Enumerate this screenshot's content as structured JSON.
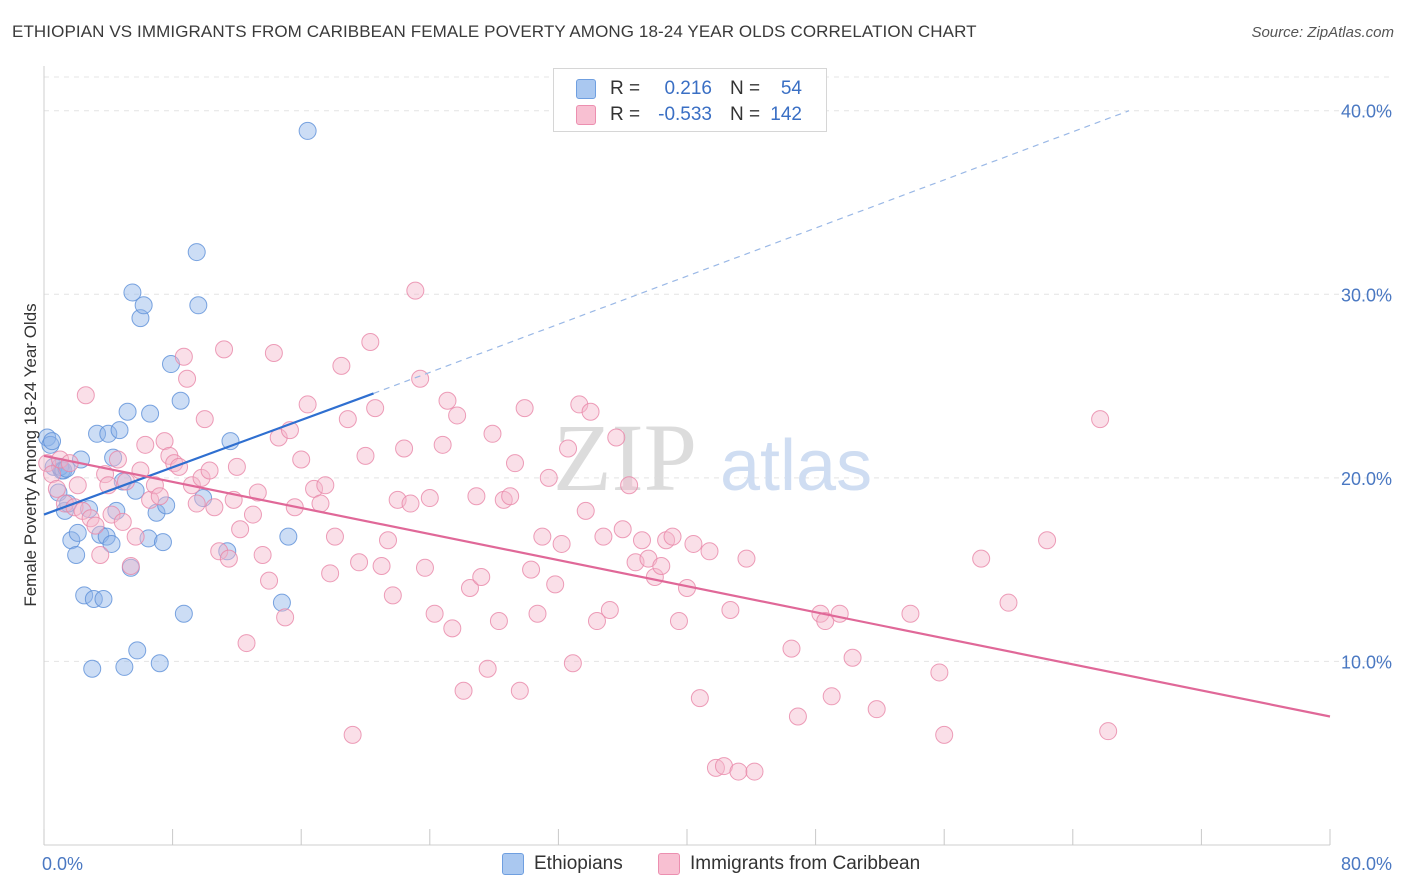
{
  "title": "ETHIOPIAN VS IMMIGRANTS FROM CARIBBEAN FEMALE POVERTY AMONG 18-24 YEAR OLDS CORRELATION CHART",
  "source": "Source: ZipAtlas.com",
  "watermark": {
    "zip": "ZIP",
    "atlas": "atlas"
  },
  "legend_stats": {
    "r_label": "R =",
    "n_label": "N =",
    "rows": [
      {
        "r": "0.216",
        "n": "54",
        "color": "#aac8f0",
        "border": "#6f9fe0"
      },
      {
        "r": "-0.533",
        "n": "142",
        "color": "#f8c0d2",
        "border": "#ec8fb0"
      }
    ]
  },
  "chart_data": {
    "type": "scatter",
    "title": "ETHIOPIAN VS IMMIGRANTS FROM CARIBBEAN FEMALE POVERTY AMONG 18-24 YEAR OLDS CORRELATION CHART",
    "xlabel": "",
    "ylabel": "Female Poverty Among 18-24 Year Olds",
    "xlim": [
      0,
      80
    ],
    "ylim": [
      0,
      42
    ],
    "x_tick_labels": [
      "0.0%",
      "80.0%"
    ],
    "y_ticks": [
      10,
      20,
      30,
      40
    ],
    "y_tick_labels": [
      "10.0%",
      "20.0%",
      "30.0%",
      "40.0%"
    ],
    "grid": true,
    "legend_position": "bottom",
    "series": [
      {
        "name": "Ethiopians",
        "color": "#8fb4e8",
        "stroke": "#5b8fd8",
        "trend_color": "#2f6fd0",
        "trend": {
          "x1": 0,
          "y1": 18.0,
          "x2": 20.5,
          "y2": 24.6,
          "dash_to_x": 67.5,
          "dash_to_y": 40.0
        },
        "points": [
          [
            0.2,
            22.2
          ],
          [
            0.4,
            21.8
          ],
          [
            0.6,
            20.6
          ],
          [
            0.9,
            19.2
          ],
          [
            1.1,
            20.4
          ],
          [
            1.3,
            18.2
          ],
          [
            1.5,
            18.6
          ],
          [
            1.7,
            16.6
          ],
          [
            2.0,
            15.8
          ],
          [
            2.1,
            17.0
          ],
          [
            2.3,
            21.0
          ],
          [
            2.5,
            13.6
          ],
          [
            2.8,
            18.3
          ],
          [
            3.0,
            9.6
          ],
          [
            3.1,
            13.4
          ],
          [
            3.3,
            22.4
          ],
          [
            3.5,
            16.9
          ],
          [
            3.7,
            13.4
          ],
          [
            3.9,
            16.8
          ],
          [
            4.0,
            22.4
          ],
          [
            4.2,
            16.4
          ],
          [
            4.3,
            21.1
          ],
          [
            4.5,
            18.2
          ],
          [
            4.7,
            22.6
          ],
          [
            4.9,
            19.8
          ],
          [
            5.0,
            9.7
          ],
          [
            5.2,
            23.6
          ],
          [
            5.4,
            15.1
          ],
          [
            5.5,
            30.1
          ],
          [
            5.7,
            19.3
          ],
          [
            5.8,
            10.6
          ],
          [
            6.0,
            28.7
          ],
          [
            6.2,
            29.4
          ],
          [
            6.5,
            16.7
          ],
          [
            6.6,
            23.5
          ],
          [
            7.0,
            18.1
          ],
          [
            7.2,
            9.9
          ],
          [
            7.4,
            16.5
          ],
          [
            7.6,
            18.5
          ],
          [
            7.9,
            26.2
          ],
          [
            8.5,
            24.2
          ],
          [
            8.7,
            12.6
          ],
          [
            9.5,
            32.3
          ],
          [
            9.6,
            29.4
          ],
          [
            9.9,
            18.9
          ],
          [
            11.4,
            16.0
          ],
          [
            11.6,
            22.0
          ],
          [
            14.8,
            13.2
          ],
          [
            15.2,
            16.8
          ],
          [
            16.4,
            38.9
          ],
          [
            1.0,
            20.6
          ],
          [
            1.2,
            20.4
          ],
          [
            0.5,
            22.0
          ],
          [
            1.4,
            20.5
          ]
        ]
      },
      {
        "name": "Immigrants from Caribbean",
        "color": "#f5b8cc",
        "stroke": "#e886a8",
        "trend_color": "#e06898",
        "trend": {
          "x1": 0,
          "y1": 21.2,
          "x2": 80,
          "y2": 7.0
        },
        "points": [
          [
            0.2,
            20.8
          ],
          [
            0.5,
            20.2
          ],
          [
            0.8,
            19.4
          ],
          [
            1.0,
            21.0
          ],
          [
            1.3,
            18.6
          ],
          [
            1.6,
            20.8
          ],
          [
            1.9,
            18.4
          ],
          [
            2.1,
            19.6
          ],
          [
            2.4,
            18.2
          ],
          [
            2.6,
            24.5
          ],
          [
            2.9,
            17.8
          ],
          [
            3.2,
            17.4
          ],
          [
            3.5,
            15.8
          ],
          [
            3.8,
            20.2
          ],
          [
            4.0,
            19.6
          ],
          [
            4.2,
            18.0
          ],
          [
            4.6,
            21.0
          ],
          [
            4.9,
            17.6
          ],
          [
            5.1,
            19.8
          ],
          [
            5.4,
            15.2
          ],
          [
            5.7,
            16.8
          ],
          [
            6.0,
            20.4
          ],
          [
            6.3,
            21.8
          ],
          [
            6.6,
            18.8
          ],
          [
            6.9,
            19.6
          ],
          [
            7.2,
            19.0
          ],
          [
            7.5,
            22.0
          ],
          [
            7.8,
            21.2
          ],
          [
            8.1,
            20.8
          ],
          [
            8.4,
            20.6
          ],
          [
            8.7,
            26.6
          ],
          [
            8.9,
            25.4
          ],
          [
            9.2,
            19.6
          ],
          [
            9.5,
            18.6
          ],
          [
            9.8,
            20.0
          ],
          [
            10.0,
            23.2
          ],
          [
            10.3,
            20.4
          ],
          [
            10.6,
            18.4
          ],
          [
            10.9,
            16.0
          ],
          [
            11.2,
            27.0
          ],
          [
            11.5,
            15.6
          ],
          [
            11.8,
            18.8
          ],
          [
            12.0,
            20.6
          ],
          [
            12.2,
            17.2
          ],
          [
            12.6,
            11.0
          ],
          [
            13.0,
            18.0
          ],
          [
            13.3,
            19.2
          ],
          [
            13.6,
            15.8
          ],
          [
            14.0,
            14.4
          ],
          [
            14.3,
            26.8
          ],
          [
            14.6,
            22.2
          ],
          [
            15.0,
            12.4
          ],
          [
            15.3,
            22.6
          ],
          [
            15.6,
            18.4
          ],
          [
            16.0,
            21.0
          ],
          [
            16.4,
            24.0
          ],
          [
            16.8,
            19.4
          ],
          [
            17.2,
            18.6
          ],
          [
            17.5,
            19.6
          ],
          [
            17.8,
            14.8
          ],
          [
            18.1,
            16.8
          ],
          [
            18.5,
            26.1
          ],
          [
            18.9,
            23.2
          ],
          [
            19.2,
            6.0
          ],
          [
            19.6,
            15.4
          ],
          [
            20.0,
            21.2
          ],
          [
            20.3,
            27.4
          ],
          [
            20.6,
            23.8
          ],
          [
            21.0,
            15.2
          ],
          [
            21.4,
            16.6
          ],
          [
            21.7,
            13.6
          ],
          [
            22.0,
            18.8
          ],
          [
            22.4,
            21.6
          ],
          [
            22.8,
            18.6
          ],
          [
            23.1,
            30.2
          ],
          [
            23.4,
            25.4
          ],
          [
            23.7,
            15.1
          ],
          [
            24.0,
            18.9
          ],
          [
            24.3,
            12.6
          ],
          [
            24.8,
            21.8
          ],
          [
            25.1,
            24.2
          ],
          [
            25.4,
            11.8
          ],
          [
            25.7,
            23.4
          ],
          [
            26.1,
            8.4
          ],
          [
            26.5,
            14.0
          ],
          [
            26.9,
            19.0
          ],
          [
            27.2,
            14.6
          ],
          [
            27.6,
            9.6
          ],
          [
            27.9,
            22.4
          ],
          [
            28.3,
            12.2
          ],
          [
            28.6,
            18.8
          ],
          [
            29.0,
            19.0
          ],
          [
            29.3,
            20.8
          ],
          [
            29.6,
            8.4
          ],
          [
            29.9,
            23.8
          ],
          [
            30.3,
            15.0
          ],
          [
            30.7,
            12.6
          ],
          [
            31.0,
            16.8
          ],
          [
            31.4,
            20.0
          ],
          [
            31.8,
            14.2
          ],
          [
            32.2,
            16.4
          ],
          [
            32.6,
            21.6
          ],
          [
            32.9,
            9.9
          ],
          [
            33.3,
            24.0
          ],
          [
            33.7,
            18.2
          ],
          [
            34.0,
            23.6
          ],
          [
            34.4,
            12.2
          ],
          [
            34.8,
            16.8
          ],
          [
            35.2,
            12.8
          ],
          [
            35.6,
            22.2
          ],
          [
            36.0,
            17.2
          ],
          [
            36.4,
            19.6
          ],
          [
            36.8,
            15.4
          ],
          [
            37.2,
            16.6
          ],
          [
            37.6,
            15.6
          ],
          [
            38.0,
            14.6
          ],
          [
            38.4,
            15.2
          ],
          [
            38.7,
            16.6
          ],
          [
            39.1,
            16.8
          ],
          [
            39.5,
            12.2
          ],
          [
            40.0,
            14.0
          ],
          [
            40.4,
            16.4
          ],
          [
            40.8,
            8.0
          ],
          [
            41.4,
            16.0
          ],
          [
            41.8,
            4.2
          ],
          [
            42.3,
            4.3
          ],
          [
            42.7,
            12.8
          ],
          [
            43.2,
            4.0
          ],
          [
            43.7,
            15.6
          ],
          [
            44.2,
            4.0
          ],
          [
            46.5,
            10.7
          ],
          [
            46.9,
            7.0
          ],
          [
            48.3,
            12.6
          ],
          [
            48.6,
            12.2
          ],
          [
            49.0,
            8.1
          ],
          [
            49.5,
            12.6
          ],
          [
            50.3,
            10.2
          ],
          [
            51.8,
            7.4
          ],
          [
            53.9,
            12.6
          ],
          [
            55.7,
            9.4
          ],
          [
            56.0,
            6.0
          ]
        ]
      }
    ]
  },
  "extra_pink_points": [
    [
      58.3,
      15.6
    ],
    [
      60.0,
      13.2
    ],
    [
      62.4,
      16.6
    ],
    [
      66.2,
      6.2
    ],
    [
      65.7,
      23.2
    ]
  ],
  "bottom_legend": {
    "items": [
      {
        "label": "Ethiopians",
        "color": "#aac8f0",
        "border": "#6f9fe0"
      },
      {
        "label": "Immigrants from Caribbean",
        "color": "#f8c0d2",
        "border": "#ec8fb0"
      }
    ]
  }
}
